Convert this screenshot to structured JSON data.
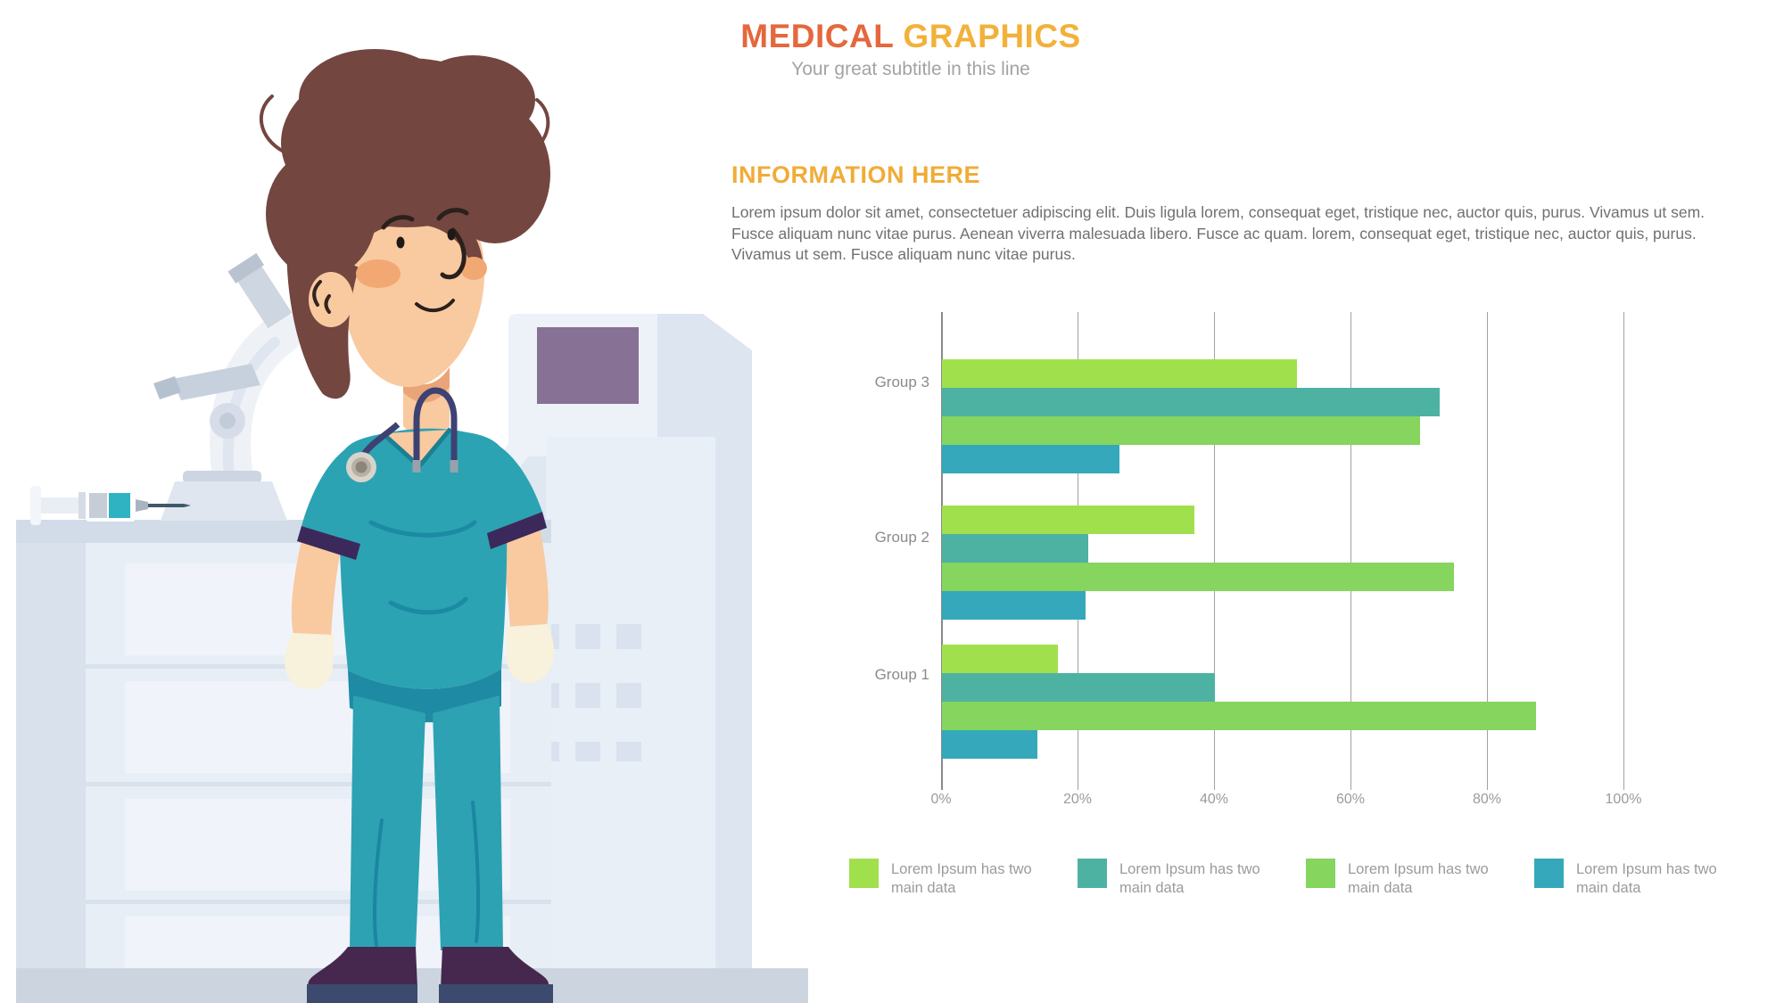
{
  "header": {
    "title_primary": "MEDICAL",
    "title_secondary": "GRAPHICS",
    "subtitle": "Your great subtitle in this line",
    "title_primary_color": "#e5673e",
    "title_secondary_color": "#f2b13a"
  },
  "info": {
    "heading": "INFORMATION HERE",
    "heading_color": "#f0ac38",
    "paragraph_lines": [
      "Lorem ipsum dolor sit amet, consectetuer adipiscing elit. Duis ligula lorem, consequat eget, tristique nec, auctor quis, purus. Vivamus ut sem.",
      "Fusce aliquam nunc vitae purus. Aenean viverra malesuada libero. Fusce ac quam. lorem, consequat eget, tristique nec, auctor quis, purus.",
      "Vivamus ut sem. Fusce aliquam nunc vitae purus."
    ]
  },
  "chart_data": {
    "type": "bar",
    "orientation": "horizontal",
    "title": "",
    "categories": [
      "Group 3",
      "Group 2",
      "Group 1"
    ],
    "series": [
      {
        "name": "Lorem Ipsum has two main data",
        "color": "#a0e04c",
        "values": [
          52,
          37,
          17
        ]
      },
      {
        "name": "Lorem Ipsum has two main data",
        "color": "#4db2a2",
        "values": [
          73,
          21.5,
          40
        ]
      },
      {
        "name": "Lorem Ipsum has two main data",
        "color": "#85d55e",
        "values": [
          70,
          75,
          87
        ]
      },
      {
        "name": "Lorem Ipsum has two main data",
        "color": "#35a8bb",
        "values": [
          26,
          21,
          14
        ]
      }
    ],
    "x_ticks": [
      "0%",
      "20%",
      "40%",
      "60%",
      "80%",
      "100%"
    ],
    "xlim": [
      0,
      100
    ],
    "grid": "vertical-only",
    "legend_position": "bottom"
  },
  "legend": {
    "items": [
      {
        "color": "#a0e04c",
        "line1": "Lorem Ipsum has two",
        "line2": "main data"
      },
      {
        "color": "#4db2a2",
        "line1": "Lorem Ipsum has two",
        "line2": "main data"
      },
      {
        "color": "#85d55e",
        "line1": "Lorem Ipsum has two",
        "line2": "main data"
      },
      {
        "color": "#35a8bb",
        "line1": "Lorem Ipsum has two",
        "line2": "main data"
      }
    ]
  },
  "illustration": {
    "description": "Nurse in teal scrubs with stethoscope standing in a laboratory with microscope, syringe, cabinet and medical analyzer with purple screen",
    "colors": {
      "scrubs": "#2ba3b3",
      "scrubs_shadow": "#1a87a1",
      "skin": "#f9c9a0",
      "hair": "#744640",
      "glove": "#f8f1dc",
      "cuff": "#3b295b",
      "shoe": "#46284f",
      "sole": "#3c4a6e",
      "screen": "#877194",
      "machine_light": "#e9eff7",
      "machine_dark": "#dde5f0",
      "cabinet": "#e8eef6",
      "counter": "#d2dce8",
      "floor": "#ccd5df",
      "stethoscope": "#3d4273",
      "syringe_fluid": "#2fb2c1"
    }
  }
}
